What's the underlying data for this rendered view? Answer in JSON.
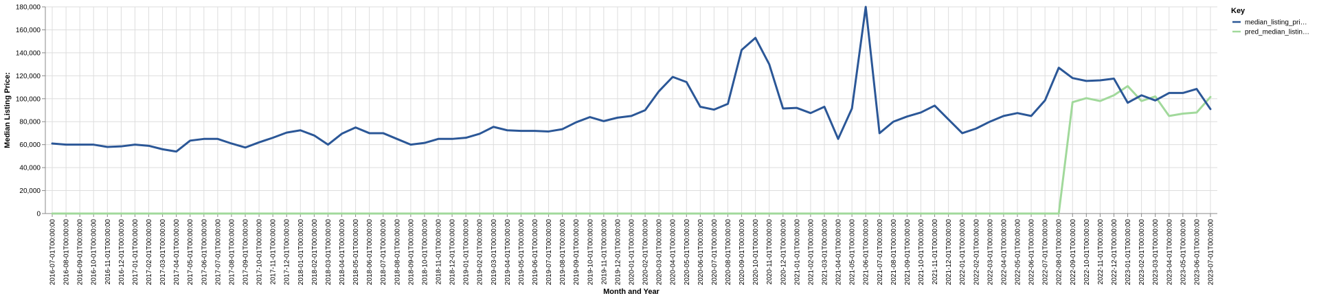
{
  "chart_data": {
    "type": "line",
    "xlabel": "Month and Year",
    "ylabel": "Median Listing Price:",
    "ylim": [
      0,
      180000
    ],
    "yticks": [
      "0",
      "20,000",
      "40,000",
      "60,000",
      "80,000",
      "100,000",
      "120,000",
      "140,000",
      "160,000",
      "180,000"
    ],
    "grid": true,
    "legend_position": "right",
    "legend_title": "Key",
    "x": [
      "2016-07-01T00:00:00",
      "2016-08-01T00:00:00",
      "2016-09-01T00:00:00",
      "2016-10-01T00:00:00",
      "2016-11-01T00:00:00",
      "2016-12-01T00:00:00",
      "2017-01-01T00:00:00",
      "2017-02-01T00:00:00",
      "2017-03-01T00:00:00",
      "2017-04-01T00:00:00",
      "2017-05-01T00:00:00",
      "2017-06-01T00:00:00",
      "2017-07-01T00:00:00",
      "2017-08-01T00:00:00",
      "2017-09-01T00:00:00",
      "2017-10-01T00:00:00",
      "2017-11-01T00:00:00",
      "2017-12-01T00:00:00",
      "2018-01-01T00:00:00",
      "2018-02-01T00:00:00",
      "2018-03-01T00:00:00",
      "2018-04-01T00:00:00",
      "2018-05-01T00:00:00",
      "2018-06-01T00:00:00",
      "2018-07-01T00:00:00",
      "2018-08-01T00:00:00",
      "2018-09-01T00:00:00",
      "2018-10-01T00:00:00",
      "2018-11-01T00:00:00",
      "2018-12-01T00:00:00",
      "2019-01-01T00:00:00",
      "2019-02-01T00:00:00",
      "2019-03-01T00:00:00",
      "2019-04-01T00:00:00",
      "2019-05-01T00:00:00",
      "2019-06-01T00:00:00",
      "2019-07-01T00:00:00",
      "2019-08-01T00:00:00",
      "2019-09-01T00:00:00",
      "2019-10-01T00:00:00",
      "2019-11-01T00:00:00",
      "2019-12-01T00:00:00",
      "2020-01-01T00:00:00",
      "2020-02-01T00:00:00",
      "2020-03-01T00:00:00",
      "2020-04-01T00:00:00",
      "2020-05-01T00:00:00",
      "2020-06-01T00:00:00",
      "2020-07-01T00:00:00",
      "2020-08-01T00:00:00",
      "2020-09-01T00:00:00",
      "2020-10-01T00:00:00",
      "2020-11-01T00:00:00",
      "2020-12-01T00:00:00",
      "2021-01-01T00:00:00",
      "2021-02-01T00:00:00",
      "2021-03-01T00:00:00",
      "2021-04-01T00:00:00",
      "2021-05-01T00:00:00",
      "2021-06-01T00:00:00",
      "2021-07-01T00:00:00",
      "2021-08-01T00:00:00",
      "2021-09-01T00:00:00",
      "2021-10-01T00:00:00",
      "2021-11-01T00:00:00",
      "2021-12-01T00:00:00",
      "2022-01-01T00:00:00",
      "2022-02-01T00:00:00",
      "2022-03-01T00:00:00",
      "2022-04-01T00:00:00",
      "2022-05-01T00:00:00",
      "2022-06-01T00:00:00",
      "2022-07-01T00:00:00",
      "2022-08-01T00:00:00",
      "2022-09-01T00:00:00",
      "2022-10-01T00:00:00",
      "2022-11-01T00:00:00",
      "2022-12-01T00:00:00",
      "2023-01-01T00:00:00",
      "2023-02-01T00:00:00",
      "2023-03-01T00:00:00",
      "2023-04-01T00:00:00",
      "2023-05-01T00:00:00",
      "2023-06-01T00:00:00",
      "2023-07-01T00:00:00"
    ],
    "series": [
      {
        "name": "median_listing_pri…",
        "color": "#2b5797",
        "values": [
          61000,
          60000,
          60000,
          60000,
          58000,
          58500,
          60000,
          59000,
          56000,
          54000,
          63500,
          65000,
          65000,
          61000,
          57500,
          62000,
          66000,
          70500,
          72500,
          68000,
          60000,
          69500,
          75000,
          70000,
          70000,
          65000,
          60000,
          61500,
          65000,
          65000,
          66000,
          69500,
          75500,
          72500,
          72000,
          72000,
          71500,
          73500,
          79500,
          84000,
          80500,
          83500,
          85000,
          90000,
          106500,
          119000,
          114500,
          93000,
          90500,
          95500,
          142500,
          153000,
          130000,
          91500,
          92000,
          87500,
          93000,
          65000,
          91500,
          180000,
          70000,
          80000,
          84500,
          88000,
          94000,
          82000,
          70000,
          74000,
          80000,
          85000,
          87500,
          85000,
          98500,
          127000,
          118000,
          115500,
          116000,
          117500,
          96500,
          103000,
          98500,
          105000,
          105000,
          108500,
          91000
        ]
      },
      {
        "name": "pred_median_listin…",
        "color": "#a1d99b",
        "values": [
          0,
          0,
          0,
          0,
          0,
          0,
          0,
          0,
          0,
          0,
          0,
          0,
          0,
          0,
          0,
          0,
          0,
          0,
          0,
          0,
          0,
          0,
          0,
          0,
          0,
          0,
          0,
          0,
          0,
          0,
          0,
          0,
          0,
          0,
          0,
          0,
          0,
          0,
          0,
          0,
          0,
          0,
          0,
          0,
          0,
          0,
          0,
          0,
          0,
          0,
          0,
          0,
          0,
          0,
          0,
          0,
          0,
          0,
          0,
          0,
          0,
          0,
          0,
          0,
          0,
          0,
          0,
          0,
          0,
          0,
          0,
          0,
          0,
          0,
          97000,
          100500,
          98000,
          103000,
          111000,
          98000,
          102000,
          85000,
          87000,
          88000,
          101500
        ]
      }
    ]
  }
}
